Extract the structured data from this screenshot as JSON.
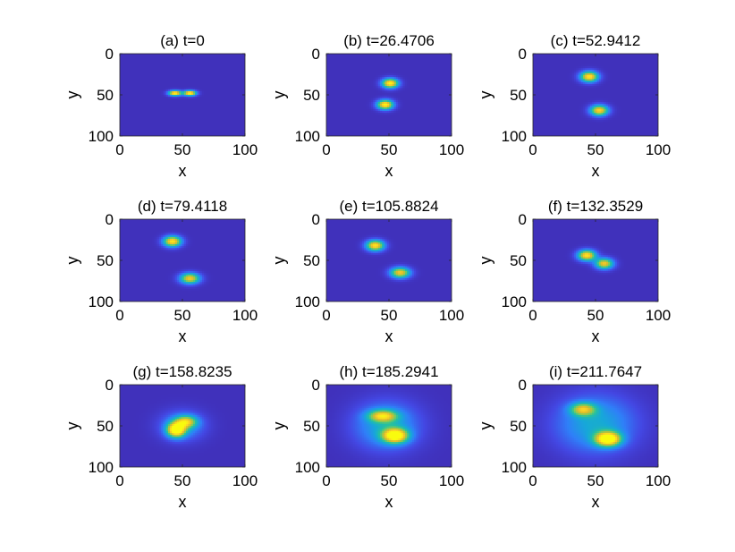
{
  "chart_data": [
    {
      "type": "heatmap",
      "title": "(a) t=0",
      "xlabel": "x",
      "ylabel": "y",
      "xlim": [
        0,
        100
      ],
      "ylim": [
        0,
        100
      ],
      "xticks": [
        "0",
        "50",
        "100"
      ],
      "yticks": [
        "0",
        "50",
        "100"
      ],
      "blobs": [
        {
          "x": 44,
          "y": 48,
          "sx": 3.5,
          "sy": 2.2,
          "amp": 1.0
        },
        {
          "x": 56,
          "y": 48,
          "sx": 3.5,
          "sy": 2.2,
          "amp": 1.0
        }
      ]
    },
    {
      "type": "heatmap",
      "title": "(b) t=26.4706",
      "xlabel": "x",
      "ylabel": "y",
      "xlim": [
        0,
        100
      ],
      "ylim": [
        0,
        100
      ],
      "xticks": [
        "0",
        "50",
        "100"
      ],
      "yticks": [
        "0",
        "50",
        "100"
      ],
      "blobs": [
        {
          "x": 51,
          "y": 36,
          "sx": 4.5,
          "sy": 4,
          "amp": 0.95
        },
        {
          "x": 47,
          "y": 62,
          "sx": 4.5,
          "sy": 4,
          "amp": 0.95
        }
      ]
    },
    {
      "type": "heatmap",
      "title": "(c) t=52.9412",
      "xlabel": "x",
      "ylabel": "y",
      "xlim": [
        0,
        100
      ],
      "ylim": [
        0,
        100
      ],
      "xticks": [
        "0",
        "50",
        "100"
      ],
      "yticks": [
        "0",
        "50",
        "100"
      ],
      "blobs": [
        {
          "x": 45,
          "y": 28,
          "sx": 5,
          "sy": 4.5,
          "amp": 0.9
        },
        {
          "x": 53,
          "y": 69,
          "sx": 5,
          "sy": 4.5,
          "amp": 0.85
        }
      ]
    },
    {
      "type": "heatmap",
      "title": "(d) t=79.4118",
      "xlabel": "x",
      "ylabel": "y",
      "xlim": [
        0,
        100
      ],
      "ylim": [
        0,
        100
      ],
      "xticks": [
        "0",
        "50",
        "100"
      ],
      "yticks": [
        "0",
        "50",
        "100"
      ],
      "blobs": [
        {
          "x": 42,
          "y": 27,
          "sx": 5,
          "sy": 4.5,
          "amp": 0.9
        },
        {
          "x": 56,
          "y": 72,
          "sx": 5.5,
          "sy": 4.5,
          "amp": 0.8
        }
      ]
    },
    {
      "type": "heatmap",
      "title": "(e) t=105.8824",
      "xlabel": "x",
      "ylabel": "y",
      "xlim": [
        0,
        100
      ],
      "ylim": [
        0,
        100
      ],
      "xticks": [
        "0",
        "50",
        "100"
      ],
      "yticks": [
        "0",
        "50",
        "100"
      ],
      "blobs": [
        {
          "x": 39,
          "y": 32,
          "sx": 5,
          "sy": 4.5,
          "amp": 0.9
        },
        {
          "x": 59,
          "y": 65,
          "sx": 5.5,
          "sy": 4.5,
          "amp": 0.8
        }
      ]
    },
    {
      "type": "heatmap",
      "title": "(f) t=132.3529",
      "xlabel": "x",
      "ylabel": "y",
      "xlim": [
        0,
        100
      ],
      "ylim": [
        0,
        100
      ],
      "xticks": [
        "0",
        "50",
        "100"
      ],
      "yticks": [
        "0",
        "50",
        "100"
      ],
      "blobs": [
        {
          "x": 43,
          "y": 44,
          "sx": 5,
          "sy": 4.5,
          "amp": 0.9
        },
        {
          "x": 57,
          "y": 54,
          "sx": 5,
          "sy": 4.5,
          "amp": 0.8
        }
      ]
    },
    {
      "type": "heatmap",
      "title": "(g) t=158.8235",
      "xlabel": "x",
      "ylabel": "y",
      "xlim": [
        0,
        100
      ],
      "ylim": [
        0,
        100
      ],
      "xticks": [
        "0",
        "50",
        "100"
      ],
      "yticks": [
        "0",
        "50",
        "100"
      ],
      "blobs": [
        {
          "x": 45,
          "y": 55,
          "sx": 5,
          "sy": 6,
          "amp": 0.95
        },
        {
          "x": 53,
          "y": 45,
          "sx": 6,
          "sy": 5,
          "amp": 0.6
        },
        {
          "x": 50,
          "y": 50,
          "sx": 12,
          "sy": 12,
          "amp": 0.3
        }
      ]
    },
    {
      "type": "heatmap",
      "title": "(h) t=185.2941",
      "xlabel": "x",
      "ylabel": "y",
      "xlim": [
        0,
        100
      ],
      "ylim": [
        0,
        100
      ],
      "xticks": [
        "0",
        "50",
        "100"
      ],
      "yticks": [
        "0",
        "50",
        "100"
      ],
      "blobs": [
        {
          "x": 55,
          "y": 62,
          "sx": 7,
          "sy": 6,
          "amp": 0.95
        },
        {
          "x": 45,
          "y": 38,
          "sx": 8,
          "sy": 5,
          "amp": 0.65
        },
        {
          "x": 48,
          "y": 50,
          "sx": 18,
          "sy": 20,
          "amp": 0.35
        }
      ]
    },
    {
      "type": "heatmap",
      "title": "(i) t=211.7647",
      "xlabel": "x",
      "ylabel": "y",
      "xlim": [
        0,
        100
      ],
      "ylim": [
        0,
        100
      ],
      "xticks": [
        "0",
        "50",
        "100"
      ],
      "yticks": [
        "0",
        "50",
        "100"
      ],
      "blobs": [
        {
          "x": 60,
          "y": 66,
          "sx": 7,
          "sy": 6,
          "amp": 1.0
        },
        {
          "x": 40,
          "y": 30,
          "sx": 7,
          "sy": 5.5,
          "amp": 0.6
        },
        {
          "x": 50,
          "y": 48,
          "sx": 22,
          "sy": 24,
          "amp": 0.35
        }
      ]
    }
  ],
  "colormap": [
    "#3e26a8",
    "#4347e3",
    "#2f7ff8",
    "#16a8d8",
    "#25c0a0",
    "#80cb59",
    "#d9ba2e",
    "#fbd325",
    "#f9fb0e"
  ]
}
